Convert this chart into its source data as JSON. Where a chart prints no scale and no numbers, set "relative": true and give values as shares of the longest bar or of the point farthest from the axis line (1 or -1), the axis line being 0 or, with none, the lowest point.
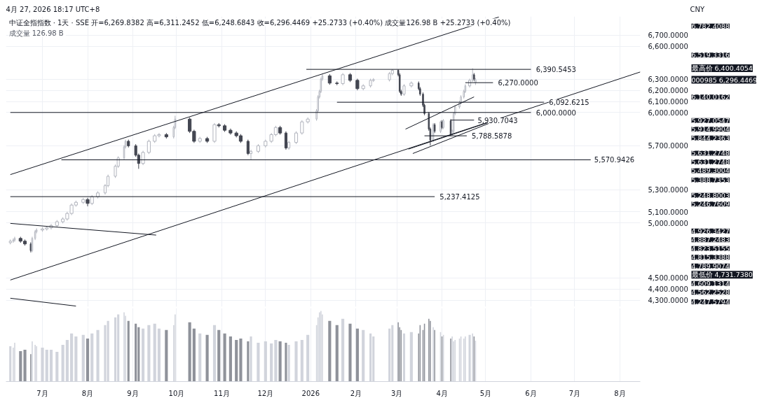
{
  "chart_data": [
    {
      "type": "candlestick",
      "title": "4月 27, 2026 18:17 UTC+8",
      "subtitle": "中证全指指数 · 1天 · SSE  开=6,269.8382  高=6,311.2452  低=6,248.6843  收=6,296.4469  +25.2733 (+0.40%)  成交量126.98 B  +25.2733 (+0.40%)",
      "ylabel": "CNY",
      "tick_labels": "y",
      "xlim": [
        "2025-06-06",
        "2026-08-15"
      ],
      "xticks": [
        {
          "value": "2025-07-01",
          "label": null
        },
        {
          "value": "2025-08-01",
          "label": null
        },
        {
          "value": "2025-09-01",
          "label": null
        },
        {
          "value": "2025-10-01",
          "label": null
        },
        {
          "value": "2025-11-01",
          "label": null
        },
        {
          "value": "2025-12-01",
          "label": null
        },
        {
          "value": "2026-01-01",
          "label": null
        },
        {
          "value": "2026-02-01",
          "label": null
        },
        {
          "value": "2026-03-01",
          "label": null
        },
        {
          "value": "2026-04-01",
          "label": null
        },
        {
          "value": "2026-05-01",
          "label": null
        },
        {
          "value": "2026-06-01",
          "label": null
        },
        {
          "value": "2026-07-01",
          "label": null
        },
        {
          "value": "2026-08-01",
          "label": null
        }
      ],
      "ylim": [
        4240,
        6870
      ],
      "yticks": [
        {
          "value": 4300,
          "label": "4,300.0000"
        },
        {
          "value": 4400,
          "label": "4,400.0000"
        },
        {
          "value": 4500,
          "label": "4,500.0000"
        },
        {
          "value": 5000,
          "label": "5,000.0000"
        },
        {
          "value": 5100,
          "label": "5,100.0000"
        },
        {
          "value": 5300,
          "label": "5,300.0000"
        },
        {
          "value": 5700,
          "label": "5,700.0000"
        },
        {
          "value": 6000,
          "label": "6,000.0000"
        },
        {
          "value": 6100,
          "label": "6,100.0000"
        },
        {
          "value": 6200,
          "label": "6,200.0000"
        },
        {
          "value": 6300,
          "label": "6,300.0000"
        },
        {
          "value": 6600,
          "label": "6,600.0000"
        },
        {
          "value": 6700,
          "label": "6,700.0000"
        }
      ],
      "grid": true,
      "series": [
        {
          "x": [
            "2025-06-09",
            "2025-06-11",
            "2025-06-12",
            "2025-06-16",
            "2025-06-19",
            "2025-06-23",
            "2025-06-24",
            "2025-06-26",
            "2025-06-27",
            "2025-07-01",
            "2025-07-04",
            "2025-07-07",
            "2025-07-11",
            "2025-07-15",
            "2025-07-18",
            "2025-07-21",
            "2025-07-24",
            "2025-07-29",
            "2025-08-01",
            "2025-08-04",
            "2025-08-08",
            "2025-08-13",
            "2025-08-15",
            "2025-08-20",
            "2025-08-22",
            "2025-08-26",
            "2025-08-27",
            "2025-08-29",
            "2025-09-03",
            "2025-09-05",
            "2025-09-08",
            "2025-09-12",
            "2025-09-16",
            "2025-09-19",
            "2025-09-24",
            "2025-09-29",
            "2025-09-30",
            "2025-10-10",
            "2025-10-13",
            "2025-10-17",
            "2025-10-22",
            "2025-10-27",
            "2025-10-30",
            "2025-11-03",
            "2025-11-07",
            "2025-11-11",
            "2025-11-14",
            "2025-11-19",
            "2025-11-21",
            "2025-11-26",
            "2025-12-01",
            "2025-12-05",
            "2025-12-08",
            "2025-12-11",
            "2025-12-15",
            "2025-12-17",
            "2025-12-22",
            "2025-12-26",
            "2025-12-30",
            "2026-01-05",
            "2026-01-06",
            "2026-01-07",
            "2026-01-08",
            "2026-01-09",
            "2026-01-14",
            "2026-01-19",
            "2026-01-23",
            "2026-01-28",
            "2026-02-02",
            "2026-02-06",
            "2026-02-11",
            "2026-02-13",
            "2026-02-24",
            "2026-02-26",
            "2026-03-02",
            "2026-03-03",
            "2026-03-04",
            "2026-03-06",
            "2026-03-11",
            "2026-03-16",
            "2026-03-17",
            "2026-03-19",
            "2026-03-20",
            "2026-03-23",
            "2026-03-24",
            "2026-03-26",
            "2026-03-27",
            "2026-03-31",
            "2026-04-01",
            "2026-04-02",
            "2026-04-07",
            "2026-04-08",
            "2026-04-09",
            "2026-04-10",
            "2026-04-13",
            "2026-04-14",
            "2026-04-16",
            "2026-04-17",
            "2026-04-20",
            "2026-04-22",
            "2026-04-23",
            "2026-04-24"
          ],
          "ohlc": [
            [
              4820,
              4849,
              4805,
              4834
            ],
            [
              4834,
              4859,
              4819,
              4844
            ],
            [
              4844,
              4874,
              4829,
              4859
            ],
            [
              4859,
              4874,
              4819,
              4834
            ],
            [
              4834,
              4849,
              4794,
              4809
            ],
            [
              4809,
              4824,
              4731.738,
              4749
            ],
            [
              4749,
              4874,
              4734,
              4859
            ],
            [
              4859,
              4935,
              4844,
              4920
            ],
            [
              4920,
              4950,
              4905,
              4935
            ],
            [
              4935,
              4960,
              4920,
              4945
            ],
            [
              4945,
              4970,
              4930,
              4955
            ],
            [
              4955,
              4990,
              4940,
              4975
            ],
            [
              4975,
              5025,
              4960,
              5010
            ],
            [
              5010,
              5050,
              4995,
              5035
            ],
            [
              5035,
              5100,
              5020,
              5085
            ],
            [
              5085,
              5176,
              5070,
              5161
            ],
            [
              5161,
              5201,
              5146,
              5186
            ],
            [
              5186,
              5226,
              5171,
              5211
            ],
            [
              5211,
              5226,
              5150,
              5176
            ],
            [
              5176,
              5251,
              5161,
              5236
            ],
            [
              5236,
              5286,
              5221,
              5271
            ],
            [
              5271,
              5352,
              5256,
              5337
            ],
            [
              5337,
              5437,
              5322,
              5422
            ],
            [
              5422,
              5528,
              5407,
              5513
            ],
            [
              5513,
              5603,
              5498,
              5588
            ],
            [
              5588,
              5703,
              5573,
              5688
            ],
            [
              5688,
              5754,
              5673,
              5739
            ],
            [
              5739,
              5754,
              5683,
              5698
            ],
            [
              5698,
              5713,
              5598,
              5613
            ],
            [
              5613,
              5628,
              5489.3004,
              5538
            ],
            [
              5538,
              5653,
              5523,
              5638
            ],
            [
              5638,
              5754,
              5623,
              5739
            ],
            [
              5739,
              5804,
              5724,
              5789
            ],
            [
              5789,
              5814,
              5774,
              5799
            ],
            [
              5799,
              5814,
              5764,
              5779
            ],
            [
              5779,
              5879,
              5764,
              5864
            ],
            [
              5864,
              5970,
              5849,
              5940
            ],
            [
              5940,
              5955,
              5814,
              5829
            ],
            [
              5829,
              5844,
              5724,
              5739
            ],
            [
              5739,
              5779,
              5724,
              5764
            ],
            [
              5764,
              5779,
              5724,
              5739
            ],
            [
              5739,
              5904,
              5724,
              5889
            ],
            [
              5889,
              5904,
              5864,
              5879
            ],
            [
              5879,
              5894,
              5824,
              5839
            ],
            [
              5839,
              5854,
              5799,
              5814
            ],
            [
              5814,
              5829,
              5774,
              5789
            ],
            [
              5789,
              5804,
              5724,
              5739
            ],
            [
              5739,
              5754,
              5613,
              5628
            ],
            [
              5628,
              5663,
              5570.9426,
              5648
            ],
            [
              5648,
              5713,
              5633,
              5698
            ],
            [
              5698,
              5754,
              5683,
              5739
            ],
            [
              5739,
              5814,
              5724,
              5799
            ],
            [
              5799,
              5879,
              5784,
              5864
            ],
            [
              5864,
              5879,
              5799,
              5814
            ],
            [
              5814,
              5829,
              5663,
              5678
            ],
            [
              5678,
              5744,
              5663,
              5729
            ],
            [
              5729,
              5829,
              5714,
              5814
            ],
            [
              5814,
              5930,
              5799,
              5915
            ],
            [
              5915,
              5955,
              5900,
              5940
            ],
            [
              5940,
              6030,
              5925,
              6015
            ],
            [
              6015,
              6156,
              6000,
              6141
            ],
            [
              6141,
              6206,
              6126,
              6191
            ],
            [
              6191,
              6317,
              6176,
              6302
            ],
            [
              6302,
              6347,
              6287,
              6332
            ],
            [
              6332,
              6347,
              6251,
              6266
            ],
            [
              6266,
              6281,
              6247,
              6262
            ],
            [
              6262,
              6357,
              6247,
              6342
            ],
            [
              6342,
              6357,
              6276,
              6291
            ],
            [
              6291,
              6306,
              6201,
              6216
            ],
            [
              6216,
              6256,
              6201,
              6241
            ],
            [
              6241,
              6306,
              6226,
              6291
            ],
            [
              6291,
              6311,
              6276,
              6296
            ],
            [
              6296,
              6367,
              6281,
              6352
            ],
            [
              6352,
              6390.5453,
              6337,
              6382
            ],
            [
              6382,
              6390,
              6327,
              6342
            ],
            [
              6342,
              6357,
              6176,
              6191
            ],
            [
              6191,
              6206,
              6151,
              6166
            ],
            [
              6166,
              6256,
              6151,
              6241
            ],
            [
              6241,
              6281,
              6226,
              6266
            ],
            [
              6266,
              6281,
              6201,
              6216
            ],
            [
              6216,
              6231,
              6151,
              6166
            ],
            [
              6166,
              6181,
              6050,
              6065
            ],
            [
              6065,
              6080,
              5975,
              5990
            ],
            [
              5990,
              6005,
              5834,
              5849
            ],
            [
              5849,
              5864,
              5700,
              5749
            ],
            [
              5749,
              5904,
              5734,
              5889
            ],
            [
              5889,
              5904,
              5814,
              5829
            ],
            [
              5829,
              5927.0547,
              5814,
              5915
            ],
            [
              5915,
              5930,
              5849,
              5864
            ],
            [
              5864,
              5940,
              5849,
              5925
            ],
            [
              5925,
              5940,
              5788.5878,
              5799
            ],
            [
              5799,
              5844,
              5790,
              5829
            ],
            [
              5829,
              6005,
              5814,
              5990
            ],
            [
              5990,
              6065,
              5975,
              6050
            ],
            [
              6050,
              6105,
              6035,
              6090
            ],
            [
              6090,
              6156,
              6075,
              6141
            ],
            [
              6141,
              6206,
              6126,
              6191
            ],
            [
              6191,
              6256,
              6176,
              6241
            ],
            [
              6241,
              6306,
              6226,
              6291
            ],
            [
              6291,
              6400.4054,
              6276,
              6342
            ],
            [
              6342,
              6357,
              6287,
              6302
            ],
            [
              6269.8382,
              6311.2452,
              6248.6843,
              6296.4469
            ]
          ],
          "colors": [
            "#b2b5be",
            "#b2b5be",
            "#b2b5be",
            "#434651",
            "#434651",
            "#434651",
            "#b2b5be",
            "#b2b5be",
            "#b2b5be",
            "#b2b5be",
            "#b2b5be",
            "#b2b5be",
            "#b2b5be",
            "#b2b5be",
            "#b2b5be",
            "#b2b5be",
            "#b2b5be",
            "#b2b5be",
            "#434651",
            "#b2b5be",
            "#b2b5be",
            "#b2b5be",
            "#b2b5be",
            "#b2b5be",
            "#b2b5be",
            "#b2b5be",
            "#b2b5be",
            "#434651",
            "#434651",
            "#434651",
            "#b2b5be",
            "#b2b5be",
            "#b2b5be",
            "#b2b5be",
            "#434651",
            "#b2b5be",
            "#b2b5be",
            "#434651",
            "#434651",
            "#b2b5be",
            "#434651",
            "#b2b5be",
            "#434651",
            "#434651",
            "#434651",
            "#434651",
            "#434651",
            "#434651",
            "#b2b5be",
            "#b2b5be",
            "#b2b5be",
            "#b2b5be",
            "#b2b5be",
            "#434651",
            "#434651",
            "#b2b5be",
            "#b2b5be",
            "#b2b5be",
            "#b2b5be",
            "#b2b5be",
            "#b2b5be",
            "#b2b5be",
            "#b2b5be",
            "#b2b5be",
            "#434651",
            "#434651",
            "#b2b5be",
            "#434651",
            "#434651",
            "#b2b5be",
            "#b2b5be",
            "#b2b5be",
            "#b2b5be",
            "#b2b5be",
            "#434651",
            "#434651",
            "#434651",
            "#b2b5be",
            "#b2b5be",
            "#434651",
            "#434651",
            "#434651",
            "#434651",
            "#434651",
            "#434651",
            "#b2b5be",
            "#434651",
            "#b2b5be",
            "#434651",
            "#b2b5be",
            "#434651",
            "#b2b5be",
            "#b2b5be",
            "#b2b5be",
            "#b2b5be",
            "#b2b5be",
            "#b2b5be",
            "#b2b5be",
            "#b2b5be",
            "#b2b5be",
            "#434651",
            "#b2b5be"
          ]
        },
        {
          "type": "line",
          "color": "#131722",
          "x": [
            "2025-06-09",
            "2026-05-10"
          ],
          "values": [
            5437,
            6865
          ]
        },
        {
          "type": "line",
          "color": "#131722",
          "x": [
            "2025-06-09",
            "2026-08-15"
          ],
          "values": [
            4482,
            6367
          ]
        },
        {
          "type": "line",
          "color": "#131722",
          "x": [
            "2025-06-09",
            "2025-09-17"
          ],
          "values": [
            4995,
            4889
          ]
        },
        {
          "type": "line",
          "color": "#131722",
          "x": [
            "2025-06-09",
            "2025-07-24"
          ],
          "values": [
            4317,
            4246
          ]
        },
        {
          "type": "line",
          "color": "#131722",
          "x": [
            "2026-03-07",
            "2026-04-23"
          ],
          "values": [
            5849,
            6141
          ]
        },
        {
          "type": "line",
          "color": "#131722",
          "x": [
            "2026-03-09",
            "2026-05-03"
          ],
          "values": [
            5668,
            5910
          ]
        },
        {
          "type": "line",
          "color": "#131722",
          "x": [
            "2026-03-12",
            "2026-05-03"
          ],
          "values": [
            5628,
            5900
          ]
        },
        {
          "type": "line",
          "color": "#131722",
          "x": [
            "2025-12-29",
            "2026-06-01"
          ],
          "values": [
            6390.5453,
            6390.5453
          ]
        },
        {
          "type": "line",
          "color": "#131722",
          "x": [
            "2026-04-17",
            "2026-05-06"
          ],
          "values": [
            6270,
            6270
          ]
        },
        {
          "type": "line",
          "color": "#131722",
          "x": [
            "2026-01-19",
            "2026-06-10"
          ],
          "values": [
            6092.6215,
            6092.6215
          ]
        },
        {
          "type": "line",
          "color": "#131722",
          "x": [
            "2025-06-09",
            "2026-06-01"
          ],
          "values": [
            6000,
            6000
          ]
        },
        {
          "type": "line",
          "color": "#131722",
          "x": [
            "2026-04-07",
            "2026-04-23"
          ],
          "values": [
            5930.7043,
            5930.7043
          ]
        },
        {
          "type": "line",
          "color": "#131722",
          "x": [
            "2026-03-20",
            "2026-04-18"
          ],
          "values": [
            5788.5878,
            5788.5878
          ]
        },
        {
          "type": "line",
          "color": "#131722",
          "x": [
            "2025-07-14",
            "2026-07-12"
          ],
          "values": [
            5570.9426,
            5570.9426
          ]
        },
        {
          "type": "line",
          "color": "#131722",
          "x": [
            "2025-06-09",
            "2026-03-27"
          ],
          "values": [
            5237.4125,
            5237.4125
          ]
        }
      ],
      "annotations": [
        "成交量  126.98 B",
        {
          "text": "6,390.5453",
          "x": "2026-06-03",
          "y": 6390.5453
        },
        {
          "text": "6,270.0000",
          "x": "2026-05-08",
          "y": 6270
        },
        {
          "text": "6,092.6215",
          "x": "2026-06-12",
          "y": 6092.6215
        },
        {
          "text": "6,000.0000",
          "x": "2026-06-03",
          "y": 6000
        },
        {
          "text": "5,930.7043",
          "x": "2026-04-24",
          "y": 5930.7043
        },
        {
          "text": "5,788.5878",
          "x": "2026-04-20",
          "y": 5788.5878
        },
        {
          "text": "5,570.9426",
          "x": "2026-07-13",
          "y": 5570.9426
        },
        {
          "text": "5,237.4125",
          "x": "2026-03-29",
          "y": 5237.4125
        },
        "6,782.4088",
        "6,519.3316",
        "最高价 6,400.4054",
        "000985 6,296.4469",
        "6,140.0162",
        "5,927.0547",
        "5,914.9904",
        "5,844.2363",
        "5,631.2748",
        "5,631.2748",
        "5,489.3004",
        "5,388.7353",
        "5,248.8003",
        "5,246.7609",
        "4,926.3427",
        "4,887.2483",
        "4,823.5155",
        "4,815.3388",
        "4,789.9074",
        "最低价 4,731.7380",
        "4,609.1314",
        "4,562.2528",
        "4,247.5794"
      ]
    },
    {
      "type": "bar",
      "relative": true,
      "tick_labels": "x",
      "grid": "x",
      "xlim": [
        "2025-06-06",
        "2026-08-15"
      ],
      "xticks": [
        {
          "value": "2025-07-01",
          "label": "7月"
        },
        {
          "value": "2025-08-01",
          "label": "8月"
        },
        {
          "value": "2025-09-01",
          "label": "9月"
        },
        {
          "value": "2025-10-01",
          "label": "10月"
        },
        {
          "value": "2025-11-01",
          "label": "11月"
        },
        {
          "value": "2025-12-01",
          "label": "12月"
        },
        {
          "value": "2026-01-01",
          "label": "2026"
        },
        {
          "value": "2026-02-01",
          "label": "2月"
        },
        {
          "value": "2026-03-01",
          "label": "3月"
        },
        {
          "value": "2026-04-01",
          "label": "4月"
        },
        {
          "value": "2026-05-01",
          "label": "5月"
        },
        {
          "value": "2026-06-01",
          "label": "6月"
        },
        {
          "value": "2026-07-01",
          "label": "7月"
        },
        {
          "value": "2026-08-01",
          "label": "8月"
        }
      ],
      "x": [
        "2025-06-09",
        "2025-06-11",
        "2025-06-12",
        "2025-06-16",
        "2025-06-19",
        "2025-06-23",
        "2025-06-24",
        "2025-06-26",
        "2025-06-27",
        "2025-07-01",
        "2025-07-04",
        "2025-07-07",
        "2025-07-11",
        "2025-07-15",
        "2025-07-18",
        "2025-07-21",
        "2025-07-24",
        "2025-07-29",
        "2025-08-01",
        "2025-08-04",
        "2025-08-08",
        "2025-08-13",
        "2025-08-15",
        "2025-08-20",
        "2025-08-22",
        "2025-08-26",
        "2025-08-27",
        "2025-08-29",
        "2025-09-03",
        "2025-09-05",
        "2025-09-08",
        "2025-09-12",
        "2025-09-16",
        "2025-09-19",
        "2025-09-24",
        "2025-09-29",
        "2025-09-30",
        "2025-10-10",
        "2025-10-13",
        "2025-10-17",
        "2025-10-22",
        "2025-10-27",
        "2025-10-30",
        "2025-11-03",
        "2025-11-07",
        "2025-11-11",
        "2025-11-14",
        "2025-11-19",
        "2025-11-21",
        "2025-11-26",
        "2025-12-01",
        "2025-12-05",
        "2025-12-08",
        "2025-12-11",
        "2025-12-15",
        "2025-12-17",
        "2025-12-22",
        "2025-12-26",
        "2025-12-30",
        "2026-01-05",
        "2026-01-06",
        "2026-01-07",
        "2026-01-08",
        "2026-01-09",
        "2026-01-14",
        "2026-01-19",
        "2026-01-23",
        "2026-01-28",
        "2026-02-02",
        "2026-02-06",
        "2026-02-11",
        "2026-02-13",
        "2026-02-24",
        "2026-02-26",
        "2026-03-02",
        "2026-03-03",
        "2026-03-04",
        "2026-03-06",
        "2026-03-11",
        "2026-03-16",
        "2026-03-17",
        "2026-03-19",
        "2026-03-20",
        "2026-03-23",
        "2026-03-24",
        "2026-03-26",
        "2026-03-27",
        "2026-03-31",
        "2026-04-01",
        "2026-04-02",
        "2026-04-07",
        "2026-04-08",
        "2026-04-09",
        "2026-04-10",
        "2026-04-13",
        "2026-04-14",
        "2026-04-16",
        "2026-04-17",
        "2026-04-20",
        "2026-04-22",
        "2026-04-23",
        "2026-04-24"
      ],
      "values": [
        0.5,
        0.48,
        0.55,
        0.43,
        0.45,
        0.39,
        0.57,
        0.52,
        0.5,
        0.48,
        0.45,
        0.45,
        0.42,
        0.52,
        0.59,
        0.68,
        0.64,
        0.66,
        0.61,
        0.68,
        0.73,
        0.8,
        0.86,
        0.91,
        0.95,
        0.98,
        0.93,
        0.86,
        0.82,
        0.77,
        0.75,
        0.8,
        0.82,
        0.75,
        0.73,
        0.8,
        0.95,
        0.84,
        0.75,
        0.68,
        0.66,
        0.8,
        0.73,
        0.68,
        0.64,
        0.59,
        0.61,
        0.57,
        0.64,
        0.55,
        0.57,
        0.54,
        0.59,
        0.57,
        0.55,
        0.52,
        0.57,
        0.59,
        0.66,
        0.8,
        0.91,
        0.98,
        1,
        0.95,
        0.86,
        0.8,
        0.89,
        0.82,
        0.75,
        0.73,
        0.68,
        0.64,
        0.75,
        0.8,
        0.84,
        0.77,
        0.73,
        0.68,
        0.7,
        0.68,
        0.8,
        0.73,
        0.82,
        0.89,
        0.86,
        0.77,
        0.73,
        0.7,
        0.64,
        0.66,
        0.61,
        0.64,
        0.57,
        0.59,
        0.61,
        0.64,
        0.61,
        0.64,
        0.66,
        0.68,
        0.64,
        0.58
      ],
      "colors": [
        "#d1d4dc",
        "#d1d4dc",
        "#d1d4dc",
        "#8f929a",
        "#8f929a",
        "#8f929a",
        "#d1d4dc",
        "#d1d4dc",
        "#d1d4dc",
        "#d1d4dc",
        "#d1d4dc",
        "#d1d4dc",
        "#d1d4dc",
        "#d1d4dc",
        "#d1d4dc",
        "#d1d4dc",
        "#d1d4dc",
        "#d1d4dc",
        "#8f929a",
        "#d1d4dc",
        "#d1d4dc",
        "#d1d4dc",
        "#d1d4dc",
        "#d1d4dc",
        "#d1d4dc",
        "#d1d4dc",
        "#d1d4dc",
        "#8f929a",
        "#8f929a",
        "#8f929a",
        "#d1d4dc",
        "#d1d4dc",
        "#d1d4dc",
        "#d1d4dc",
        "#8f929a",
        "#d1d4dc",
        "#d1d4dc",
        "#8f929a",
        "#8f929a",
        "#d1d4dc",
        "#8f929a",
        "#d1d4dc",
        "#8f929a",
        "#8f929a",
        "#8f929a",
        "#8f929a",
        "#8f929a",
        "#8f929a",
        "#d1d4dc",
        "#d1d4dc",
        "#d1d4dc",
        "#d1d4dc",
        "#d1d4dc",
        "#8f929a",
        "#8f929a",
        "#d1d4dc",
        "#d1d4dc",
        "#d1d4dc",
        "#d1d4dc",
        "#d1d4dc",
        "#d1d4dc",
        "#d1d4dc",
        "#d1d4dc",
        "#d1d4dc",
        "#8f929a",
        "#8f929a",
        "#d1d4dc",
        "#8f929a",
        "#8f929a",
        "#d1d4dc",
        "#d1d4dc",
        "#d1d4dc",
        "#d1d4dc",
        "#d1d4dc",
        "#8f929a",
        "#8f929a",
        "#8f929a",
        "#d1d4dc",
        "#d1d4dc",
        "#8f929a",
        "#8f929a",
        "#8f929a",
        "#8f929a",
        "#8f929a",
        "#8f929a",
        "#d1d4dc",
        "#8f929a",
        "#d1d4dc",
        "#8f929a",
        "#d1d4dc",
        "#8f929a",
        "#d1d4dc",
        "#d1d4dc",
        "#d1d4dc",
        "#d1d4dc",
        "#d1d4dc",
        "#d1d4dc",
        "#d1d4dc",
        "#d1d4dc",
        "#d1d4dc",
        "#8f929a",
        "#d1d4dc"
      ]
    }
  ]
}
